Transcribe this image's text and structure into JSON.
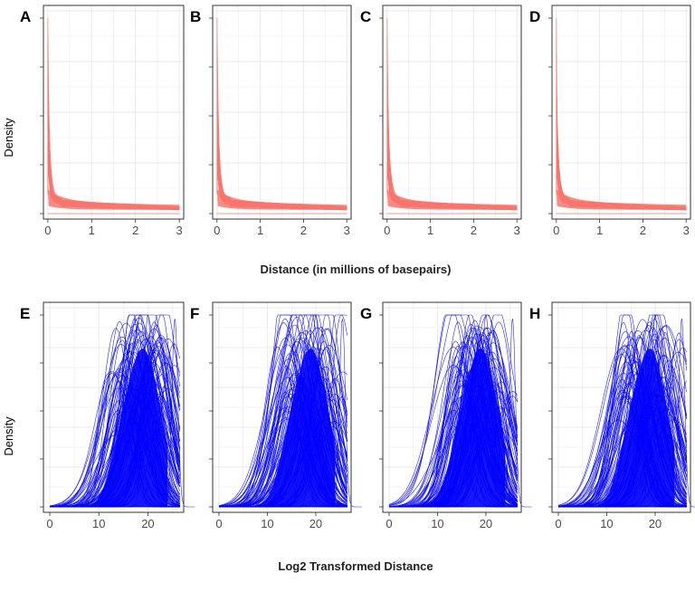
{
  "chart_data": [
    {
      "type": "line",
      "panels": [
        "A",
        "B",
        "C",
        "D"
      ],
      "xlabel": "Distance (in millions of basepairs)",
      "ylabel": "Density",
      "x_ticks": [
        0,
        1,
        2,
        3
      ],
      "xlim": [
        -0.1,
        3.1
      ],
      "y_tick_labels_shown": false,
      "color": "#f8766d",
      "grid": true,
      "series_description": "many overlapping density curves, sharp peak near 0 then long flat tail to 3",
      "typical_curve": {
        "x": [
          0,
          0.03,
          0.08,
          0.15,
          0.25,
          0.4,
          0.6,
          1.0,
          1.5,
          2.0,
          2.5,
          3.0
        ],
        "y": [
          0.3,
          1.0,
          0.55,
          0.3,
          0.17,
          0.1,
          0.07,
          0.045,
          0.035,
          0.03,
          0.027,
          0.025
        ]
      }
    },
    {
      "type": "line",
      "panels": [
        "E",
        "F",
        "G",
        "H"
      ],
      "xlabel": "Log2 Transformed Distance",
      "ylabel": "Density",
      "x_ticks": [
        0,
        10,
        20
      ],
      "xlim": [
        -1.3,
        27.3
      ],
      "y_tick_labels_shown": false,
      "color": "#0000ff",
      "grid": true,
      "series_description": "many overlapping density curves peaking between ~13 and ~26",
      "typical_curve": {
        "x": [
          0,
          5,
          10,
          13,
          15,
          17,
          19,
          20,
          21,
          22,
          23,
          25,
          26
        ],
        "y": [
          0,
          0.0,
          0.08,
          0.3,
          0.55,
          0.6,
          0.75,
          0.85,
          0.8,
          0.6,
          0.2,
          0.02,
          0
        ]
      }
    }
  ]
}
